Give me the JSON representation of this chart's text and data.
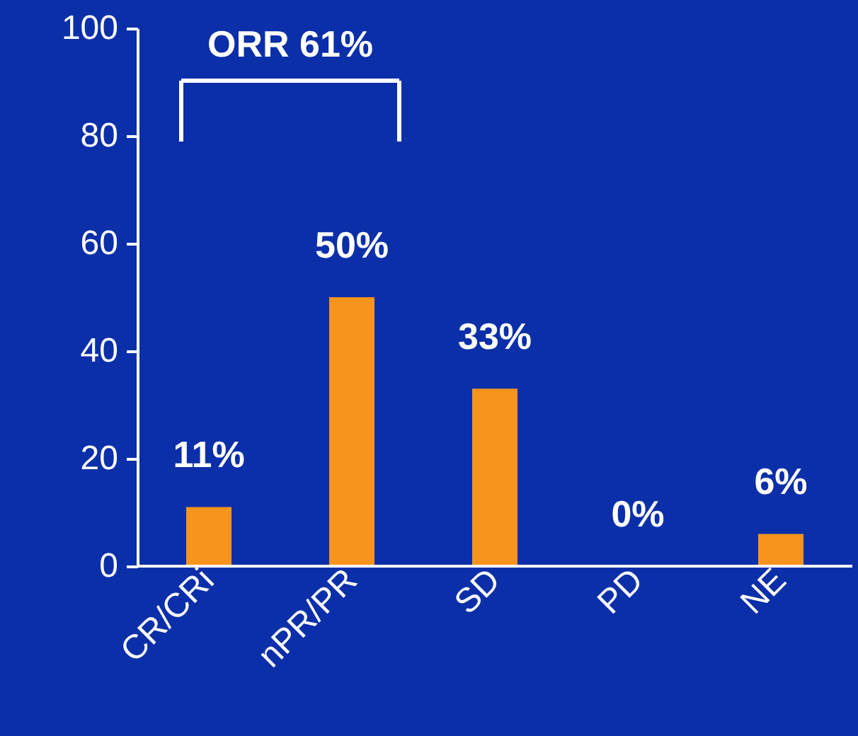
{
  "chart_data": {
    "type": "bar",
    "categories": [
      "CR/CRi",
      "nPR/PR",
      "SD",
      "PD",
      "NE"
    ],
    "values": [
      11,
      50,
      33,
      0,
      6
    ],
    "value_labels": [
      "11%",
      "50%",
      "33%",
      "0%",
      "6%"
    ],
    "color": "#f7941d",
    "ylim": [
      0,
      100
    ],
    "yticks": [
      0,
      20,
      40,
      60,
      80,
      100
    ],
    "grid": false,
    "annotations": [
      "ORR 61%"
    ]
  }
}
